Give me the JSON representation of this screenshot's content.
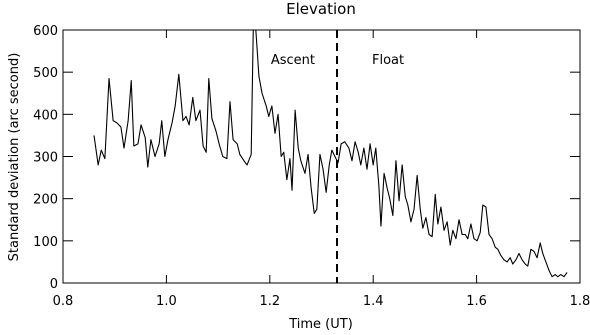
{
  "chart_data": {
    "type": "line",
    "title": "Elevation",
    "x_label": "Time (UT)",
    "y_label": "Standard deviation (arc second)",
    "annotations": [
      "Ascent",
      "Float"
    ],
    "vline": 1.33,
    "xlim": [
      0.8,
      1.8
    ],
    "xticks": [
      0.8,
      {
        "value": 1.0,
        "label": "1.0"
      },
      1.2,
      1.4,
      1.6,
      1.8
    ],
    "ylim": [
      0,
      600
    ],
    "yticks": [
      0,
      100,
      200,
      300,
      400,
      500,
      600
    ],
    "series": [
      {
        "color": "#000000",
        "x": [
          0.86,
          0.868,
          0.874,
          0.881,
          0.889,
          0.897,
          0.904,
          0.912,
          0.918,
          0.926,
          0.932,
          0.937,
          0.945,
          0.951,
          0.959,
          0.964,
          0.97,
          0.978,
          0.986,
          0.991,
          0.997,
          1.003,
          1.011,
          1.017,
          1.024,
          1.032,
          1.038,
          1.044,
          1.051,
          1.057,
          1.065,
          1.071,
          1.077,
          1.082,
          1.088,
          1.096,
          1.102,
          1.109,
          1.117,
          1.123,
          1.129,
          1.137,
          1.142,
          1.15,
          1.156,
          1.164,
          1.168,
          1.173,
          1.179,
          1.185,
          1.193,
          1.198,
          1.204,
          1.21,
          1.216,
          1.222,
          1.227,
          1.233,
          1.239,
          1.243,
          1.249,
          1.255,
          1.26,
          1.268,
          1.274,
          1.28,
          1.286,
          1.291,
          1.297,
          1.303,
          1.309,
          1.315,
          1.32,
          1.326,
          1.332,
          1.338,
          1.345,
          1.353,
          1.359,
          1.365,
          1.371,
          1.376,
          1.382,
          1.388,
          1.394,
          1.4,
          1.405,
          1.411,
          1.415,
          1.421,
          1.427,
          1.432,
          1.438,
          1.444,
          1.45,
          1.456,
          1.462,
          1.467,
          1.473,
          1.479,
          1.485,
          1.491,
          1.496,
          1.502,
          1.508,
          1.514,
          1.52,
          1.525,
          1.531,
          1.537,
          1.543,
          1.549,
          1.554,
          1.56,
          1.566,
          1.572,
          1.578,
          1.583,
          1.589,
          1.595,
          1.601,
          1.607,
          1.612,
          1.618,
          1.624,
          1.63,
          1.636,
          1.641,
          1.647,
          1.653,
          1.659,
          1.665,
          1.67,
          1.676,
          1.682,
          1.688,
          1.694,
          1.699,
          1.705,
          1.711,
          1.717,
          1.723,
          1.728,
          1.734,
          1.74,
          1.746,
          1.752,
          1.757,
          1.763,
          1.769,
          1.775
        ],
        "values": [
          350,
          280,
          315,
          295,
          485,
          385,
          380,
          370,
          320,
          385,
          480,
          325,
          330,
          375,
          345,
          275,
          340,
          300,
          330,
          385,
          300,
          340,
          380,
          420,
          495,
          385,
          395,
          375,
          440,
          385,
          410,
          325,
          310,
          485,
          390,
          360,
          330,
          300,
          295,
          430,
          340,
          330,
          305,
          290,
          280,
          305,
          600,
          600,
          490,
          450,
          420,
          395,
          420,
          355,
          400,
          300,
          310,
          245,
          295,
          220,
          410,
          320,
          290,
          260,
          305,
          225,
          165,
          175,
          305,
          270,
          215,
          280,
          315,
          300,
          285,
          330,
          335,
          320,
          290,
          335,
          310,
          280,
          320,
          270,
          330,
          280,
          320,
          230,
          135,
          260,
          225,
          200,
          160,
          290,
          195,
          280,
          205,
          185,
          145,
          175,
          255,
          175,
          130,
          155,
          115,
          110,
          210,
          140,
          180,
          125,
          145,
          90,
          125,
          105,
          150,
          115,
          115,
          105,
          140,
          105,
          100,
          120,
          185,
          180,
          115,
          105,
          85,
          80,
          65,
          55,
          50,
          60,
          45,
          55,
          70,
          55,
          45,
          40,
          80,
          75,
          60,
          95,
          70,
          50,
          30,
          15,
          20,
          15,
          20,
          15,
          25
        ]
      }
    ]
  }
}
